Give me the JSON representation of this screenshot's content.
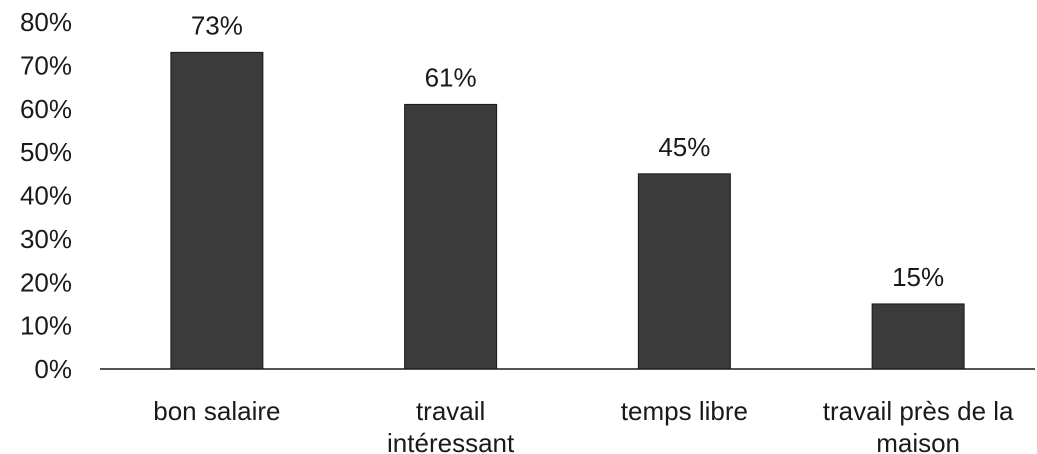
{
  "chart_data": {
    "type": "bar",
    "categories": [
      [
        "bon salaire"
      ],
      [
        "travail",
        "intéressant"
      ],
      [
        "temps libre"
      ],
      [
        "travail près de la",
        "maison"
      ]
    ],
    "values": [
      73,
      61,
      45,
      15
    ],
    "data_labels": [
      "73%",
      "61%",
      "45%",
      "15%"
    ],
    "ylim": [
      0,
      80
    ],
    "yticks": [
      0,
      10,
      20,
      30,
      40,
      50,
      60,
      70,
      80
    ],
    "ytick_labels": [
      "0%",
      "10%",
      "20%",
      "30%",
      "40%",
      "50%",
      "60%",
      "70%",
      "80%"
    ],
    "grid": false,
    "bar_color": "#3b3b3b",
    "axis_color": "#1a1a1a"
  }
}
